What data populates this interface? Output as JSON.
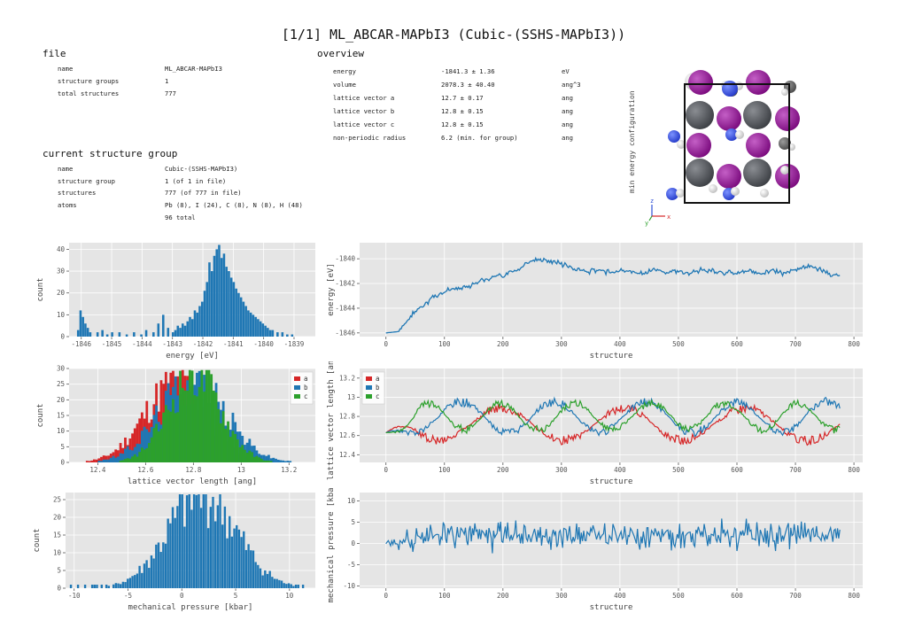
{
  "title": "[1/1] ML_ABCAR-MAPbI3 (Cubic-(SSHS-MAPbI3))",
  "file": {
    "heading": "file",
    "rows": [
      {
        "key": "name",
        "value": "ML_ABCAR-MAPbI3"
      },
      {
        "key": "structure groups",
        "value": "1"
      },
      {
        "key": "total structures",
        "value": "777"
      }
    ]
  },
  "group": {
    "heading": "current structure group",
    "rows": [
      {
        "key": "name",
        "value": "Cubic-(SSHS-MAPbI3)"
      },
      {
        "key": "structure group",
        "value": "1 (of 1 in file)"
      },
      {
        "key": "structures",
        "value": "777 (of 777 in file)"
      },
      {
        "key": "atoms",
        "value": "Pb (8), I (24), C (8), N (8), H (48)"
      },
      {
        "key": "",
        "value": "96 total"
      }
    ]
  },
  "overview": {
    "heading": "overview",
    "rows": [
      {
        "key": "energy",
        "value": "-1841.3 ± 1.36",
        "unit": "eV"
      },
      {
        "key": "volume",
        "value": "2078.3 ± 40.40",
        "unit": "ang^3"
      },
      {
        "key": "lattice vector a",
        "value": "12.7 ± 0.17",
        "unit": "ang"
      },
      {
        "key": "lattice vector b",
        "value": "12.8 ± 0.15",
        "unit": "ang"
      },
      {
        "key": "lattice vector c",
        "value": "12.8 ± 0.15",
        "unit": "ang"
      },
      {
        "key": "non-periodic radius",
        "value": "6.2 (min. for group)",
        "unit": "ang"
      }
    ]
  },
  "structure_view": {
    "label": "min energy configuration",
    "axes": {
      "x": "x",
      "z": "z",
      "y": "y"
    },
    "colors": {
      "iodine": "#8b0f8e",
      "lead": "#4a4d52",
      "nitrogen": "#2f4fd6",
      "carbon": "#5a5a5a",
      "hydrogen": "#e8e8e8"
    }
  },
  "colors": {
    "blue": "#1f77b4",
    "red": "#d62728",
    "green": "#2ca02c",
    "panel": "#e5e5e5"
  },
  "chart_data": [
    {
      "type": "bar",
      "id": "energy_hist",
      "xlabel": "energy [eV]",
      "ylabel": "count",
      "xlim": [
        -1846.4,
        -1838.3
      ],
      "ylim": [
        0,
        43
      ],
      "xticks": [
        -1846,
        -1845,
        -1844,
        -1843,
        -1842,
        -1841,
        -1840,
        -1839
      ],
      "yticks": [
        0,
        10,
        20,
        30,
        40
      ],
      "bin_width": 0.08,
      "x": [
        -1846.1,
        -1846.02,
        -1845.94,
        -1845.86,
        -1845.78,
        -1845.7,
        -1845.46,
        -1845.3,
        -1845.14,
        -1844.98,
        -1844.74,
        -1844.5,
        -1844.26,
        -1844.02,
        -1843.86,
        -1843.62,
        -1843.46,
        -1843.3,
        -1843.14,
        -1842.98,
        -1842.9,
        -1842.82,
        -1842.74,
        -1842.66,
        -1842.58,
        -1842.5,
        -1842.42,
        -1842.34,
        -1842.26,
        -1842.18,
        -1842.1,
        -1842.02,
        -1841.94,
        -1841.86,
        -1841.78,
        -1841.7,
        -1841.62,
        -1841.54,
        -1841.46,
        -1841.38,
        -1841.3,
        -1841.22,
        -1841.14,
        -1841.06,
        -1840.98,
        -1840.9,
        -1840.82,
        -1840.74,
        -1840.66,
        -1840.58,
        -1840.5,
        -1840.42,
        -1840.34,
        -1840.26,
        -1840.18,
        -1840.1,
        -1840.02,
        -1839.94,
        -1839.86,
        -1839.78,
        -1839.7,
        -1839.54,
        -1839.38,
        -1839.22,
        -1839.06
      ],
      "values": [
        3,
        12,
        9,
        6,
        4,
        2,
        2,
        3,
        1,
        2,
        2,
        1,
        2,
        1,
        3,
        2,
        6,
        10,
        4,
        2,
        3,
        5,
        4,
        6,
        5,
        7,
        9,
        8,
        12,
        11,
        14,
        16,
        21,
        25,
        34,
        30,
        37,
        40,
        42,
        36,
        38,
        32,
        30,
        27,
        25,
        22,
        20,
        18,
        16,
        14,
        12,
        11,
        10,
        9,
        8,
        7,
        6,
        5,
        4,
        3,
        3,
        2,
        2,
        1,
        1
      ]
    },
    {
      "type": "line",
      "id": "energy_trace",
      "xlabel": "structure",
      "ylabel": "energy [eV]",
      "xlim": [
        -45,
        815
      ],
      "ylim": [
        -1846.3,
        -1838.7
      ],
      "xticks": [
        0,
        100,
        200,
        300,
        400,
        500,
        600,
        700,
        800
      ],
      "yticks": [
        -1846,
        -1844,
        -1842,
        -1840
      ],
      "x": [
        0,
        20,
        40,
        60,
        80,
        100,
        120,
        140,
        160,
        180,
        200,
        220,
        240,
        260,
        280,
        300,
        320,
        340,
        360,
        380,
        400,
        420,
        440,
        460,
        480,
        500,
        520,
        540,
        560,
        580,
        600,
        620,
        640,
        660,
        680,
        700,
        720,
        740,
        760,
        777
      ],
      "y": [
        -1846.0,
        -1845.9,
        -1844.8,
        -1843.8,
        -1843.2,
        -1842.6,
        -1842.4,
        -1842.2,
        -1841.8,
        -1841.5,
        -1841.3,
        -1841.0,
        -1840.4,
        -1840.0,
        -1840.2,
        -1840.4,
        -1840.8,
        -1841.0,
        -1840.9,
        -1841.1,
        -1840.9,
        -1841.0,
        -1841.2,
        -1840.8,
        -1841.1,
        -1841.0,
        -1841.2,
        -1840.9,
        -1841.0,
        -1841.1,
        -1841.1,
        -1840.9,
        -1841.3,
        -1840.9,
        -1841.2,
        -1840.9,
        -1840.6,
        -1840.8,
        -1841.3,
        -1841.4
      ],
      "noise": 0.35
    },
    {
      "type": "bar",
      "id": "lattice_hist",
      "xlabel": "lattice vector length [ang]",
      "ylabel": "count",
      "xlim": [
        12.28,
        13.31
      ],
      "ylim": [
        0,
        30
      ],
      "xticks": [
        12.4,
        12.6,
        12.8,
        13.0,
        13.2
      ],
      "yticks": [
        0,
        5,
        10,
        15,
        20,
        25,
        30
      ],
      "legend": [
        "a",
        "b",
        "c"
      ],
      "legend_position": "top-right",
      "center": [
        12.72,
        12.79,
        12.8
      ],
      "spread": [
        0.13,
        0.14,
        0.11
      ],
      "peak": [
        25,
        26,
        28
      ]
    },
    {
      "type": "line",
      "id": "lattice_trace",
      "xlabel": "structure",
      "ylabel": "lattice vector length [ang]",
      "xlim": [
        -45,
        815
      ],
      "ylim": [
        12.32,
        13.3
      ],
      "xticks": [
        0,
        100,
        200,
        300,
        400,
        500,
        600,
        700,
        800
      ],
      "yticks": [
        12.4,
        12.6,
        12.8,
        13.0,
        13.2
      ],
      "legend": [
        "a",
        "b",
        "c"
      ],
      "legend_position": "top-left",
      "start": 12.63,
      "center": [
        12.72,
        12.79,
        12.8
      ],
      "amplitude": [
        0.2,
        0.19,
        0.16
      ]
    },
    {
      "type": "bar",
      "id": "pressure_hist",
      "xlabel": "mechanical pressure [kbar]",
      "ylabel": "count",
      "xlim": [
        -10.8,
        12.4
      ],
      "ylim": [
        0,
        27
      ],
      "xticks": [
        -10,
        -5,
        0,
        5,
        10
      ],
      "yticks": [
        0,
        5,
        10,
        15,
        20,
        25
      ],
      "center": 1.8,
      "spread": 3.2,
      "peak": 26
    },
    {
      "type": "line",
      "id": "pressure_trace",
      "xlabel": "structure",
      "ylabel": "mechanical pressure [kbar]",
      "xlim": [
        -45,
        815
      ],
      "ylim": [
        -10.5,
        12
      ],
      "xticks": [
        0,
        100,
        200,
        300,
        400,
        500,
        600,
        700,
        800
      ],
      "yticks": [
        -10,
        -5,
        0,
        5,
        10
      ],
      "start": 0,
      "center": 1.8,
      "amplitude": 3.4
    }
  ]
}
